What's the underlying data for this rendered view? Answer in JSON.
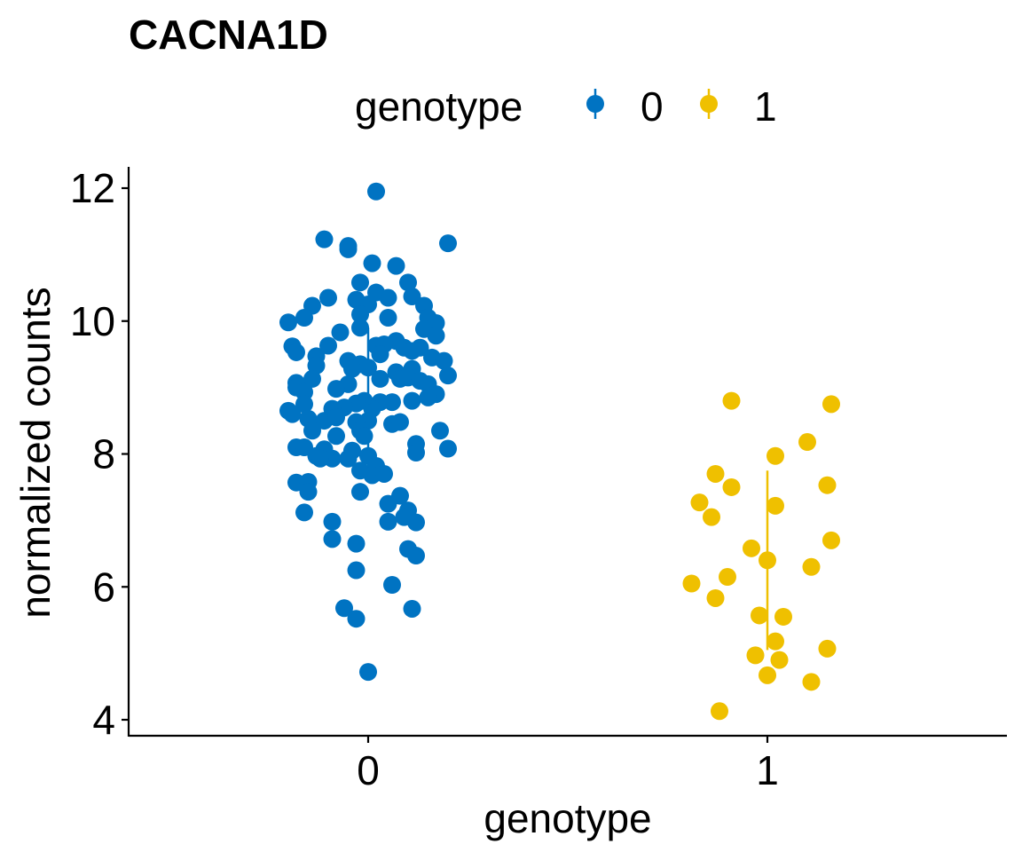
{
  "chart_data": {
    "type": "scatter",
    "title": "CACNA1D",
    "xlabel": "genotype",
    "ylabel": "normalized counts",
    "categories": [
      "0",
      "1"
    ],
    "ylim": [
      3.8,
      12.3
    ],
    "yticks": [
      4,
      6,
      8,
      10,
      12
    ],
    "grid": false,
    "legend": {
      "title": "genotype",
      "position": "top",
      "labels": [
        "0",
        "1"
      ]
    },
    "colors": {
      "0": "#0073C2",
      "1": "#EFC000"
    },
    "series": [
      {
        "name": "0",
        "summary": {
          "median": 8.8,
          "low": 7.8,
          "high": 9.9
        },
        "points": [
          {
            "x": 0.02,
            "y": 11.95
          },
          {
            "x": -0.11,
            "y": 11.23
          },
          {
            "x": -0.05,
            "y": 11.13
          },
          {
            "x": 0.2,
            "y": 11.17
          },
          {
            "x": -0.05,
            "y": 11.08
          },
          {
            "x": 0.01,
            "y": 10.87
          },
          {
            "x": 0.07,
            "y": 10.83
          },
          {
            "x": -0.02,
            "y": 10.58
          },
          {
            "x": 0.1,
            "y": 10.58
          },
          {
            "x": 0.02,
            "y": 10.43
          },
          {
            "x": -0.1,
            "y": 10.35
          },
          {
            "x": 0.11,
            "y": 10.37
          },
          {
            "x": 0.05,
            "y": 10.35
          },
          {
            "x": -0.03,
            "y": 10.32
          },
          {
            "x": -0.14,
            "y": 10.23
          },
          {
            "x": 0.14,
            "y": 10.23
          },
          {
            "x": 0.0,
            "y": 10.25
          },
          {
            "x": -0.02,
            "y": 10.1
          },
          {
            "x": -0.16,
            "y": 10.05
          },
          {
            "x": 0.05,
            "y": 10.05
          },
          {
            "x": 0.15,
            "y": 10.05
          },
          {
            "x": -0.2,
            "y": 9.98
          },
          {
            "x": 0.17,
            "y": 9.97
          },
          {
            "x": -0.02,
            "y": 9.9
          },
          {
            "x": 0.14,
            "y": 9.88
          },
          {
            "x": -0.07,
            "y": 9.83
          },
          {
            "x": 0.17,
            "y": 9.78
          },
          {
            "x": 0.07,
            "y": 9.7
          },
          {
            "x": -0.19,
            "y": 9.62
          },
          {
            "x": -0.1,
            "y": 9.63
          },
          {
            "x": 0.02,
            "y": 9.63
          },
          {
            "x": 0.04,
            "y": 9.65
          },
          {
            "x": 0.09,
            "y": 9.6
          },
          {
            "x": 0.13,
            "y": 9.6
          },
          {
            "x": -0.18,
            "y": 9.53
          },
          {
            "x": 0.11,
            "y": 9.55
          },
          {
            "x": 0.03,
            "y": 9.5
          },
          {
            "x": 0.16,
            "y": 9.45
          },
          {
            "x": -0.13,
            "y": 9.47
          },
          {
            "x": 0.19,
            "y": 9.4
          },
          {
            "x": -0.05,
            "y": 9.4
          },
          {
            "x": -0.13,
            "y": 9.33
          },
          {
            "x": -0.02,
            "y": 9.35
          },
          {
            "x": 0.0,
            "y": 9.3
          },
          {
            "x": -0.04,
            "y": 9.28
          },
          {
            "x": 0.11,
            "y": 9.28
          },
          {
            "x": 0.07,
            "y": 9.23
          },
          {
            "x": 0.2,
            "y": 9.18
          },
          {
            "x": 0.03,
            "y": 9.13
          },
          {
            "x": -0.14,
            "y": 9.13
          },
          {
            "x": 0.08,
            "y": 9.13
          },
          {
            "x": 0.1,
            "y": 9.15
          },
          {
            "x": -0.18,
            "y": 9.07
          },
          {
            "x": -0.05,
            "y": 9.05
          },
          {
            "x": 0.13,
            "y": 9.1
          },
          {
            "x": -0.18,
            "y": 9.0
          },
          {
            "x": 0.15,
            "y": 9.05
          },
          {
            "x": -0.08,
            "y": 8.98
          },
          {
            "x": -0.16,
            "y": 8.93
          },
          {
            "x": 0.17,
            "y": 8.9
          },
          {
            "x": 0.15,
            "y": 8.85
          },
          {
            "x": -0.01,
            "y": 8.8
          },
          {
            "x": 0.11,
            "y": 8.8
          },
          {
            "x": 0.06,
            "y": 8.78
          },
          {
            "x": -0.03,
            "y": 8.76
          },
          {
            "x": 0.03,
            "y": 8.78
          },
          {
            "x": -0.16,
            "y": 8.75
          },
          {
            "x": -0.06,
            "y": 8.7
          },
          {
            "x": -0.09,
            "y": 8.68
          },
          {
            "x": 0.01,
            "y": 8.68
          },
          {
            "x": -0.2,
            "y": 8.65
          },
          {
            "x": -0.19,
            "y": 8.6
          },
          {
            "x": -0.15,
            "y": 8.53
          },
          {
            "x": -0.11,
            "y": 8.5
          },
          {
            "x": -0.08,
            "y": 8.55
          },
          {
            "x": 0.0,
            "y": 8.5
          },
          {
            "x": -0.03,
            "y": 8.48
          },
          {
            "x": 0.06,
            "y": 8.45
          },
          {
            "x": 0.08,
            "y": 8.48
          },
          {
            "x": -0.02,
            "y": 8.35
          },
          {
            "x": -0.14,
            "y": 8.35
          },
          {
            "x": 0.18,
            "y": 8.35
          },
          {
            "x": -0.08,
            "y": 8.27
          },
          {
            "x": -0.01,
            "y": 8.27
          },
          {
            "x": 0.12,
            "y": 8.15
          },
          {
            "x": -0.18,
            "y": 8.1
          },
          {
            "x": -0.16,
            "y": 8.1
          },
          {
            "x": 0.2,
            "y": 8.08
          },
          {
            "x": -0.11,
            "y": 8.07
          },
          {
            "x": -0.04,
            "y": 8.05
          },
          {
            "x": 0.12,
            "y": 8.02
          },
          {
            "x": -0.13,
            "y": 7.97
          },
          {
            "x": -0.09,
            "y": 7.93
          },
          {
            "x": -0.12,
            "y": 7.93
          },
          {
            "x": -0.05,
            "y": 7.93
          },
          {
            "x": 0.0,
            "y": 7.97
          },
          {
            "x": 0.02,
            "y": 7.82
          },
          {
            "x": -0.02,
            "y": 7.75
          },
          {
            "x": 0.01,
            "y": 7.68
          },
          {
            "x": 0.04,
            "y": 7.7
          },
          {
            "x": -0.18,
            "y": 7.57
          },
          {
            "x": -0.15,
            "y": 7.58
          },
          {
            "x": -0.15,
            "y": 7.43
          },
          {
            "x": -0.02,
            "y": 7.43
          },
          {
            "x": 0.08,
            "y": 7.37
          },
          {
            "x": 0.05,
            "y": 7.25
          },
          {
            "x": 0.1,
            "y": 7.15
          },
          {
            "x": -0.16,
            "y": 7.12
          },
          {
            "x": 0.09,
            "y": 7.05
          },
          {
            "x": -0.09,
            "y": 6.98
          },
          {
            "x": 0.05,
            "y": 6.98
          },
          {
            "x": 0.12,
            "y": 6.97
          },
          {
            "x": -0.09,
            "y": 6.72
          },
          {
            "x": -0.03,
            "y": 6.65
          },
          {
            "x": 0.1,
            "y": 6.57
          },
          {
            "x": 0.12,
            "y": 6.47
          },
          {
            "x": -0.03,
            "y": 6.25
          },
          {
            "x": 0.06,
            "y": 6.03
          },
          {
            "x": -0.06,
            "y": 5.68
          },
          {
            "x": 0.11,
            "y": 5.67
          },
          {
            "x": -0.03,
            "y": 5.52
          },
          {
            "x": 0.0,
            "y": 4.72
          }
        ]
      },
      {
        "name": "1",
        "summary": {
          "median": 6.4,
          "low": 5.05,
          "high": 7.75
        },
        "points": [
          {
            "x": 0.91,
            "y": 8.8
          },
          {
            "x": 1.16,
            "y": 8.75
          },
          {
            "x": 1.1,
            "y": 8.18
          },
          {
            "x": 1.02,
            "y": 7.97
          },
          {
            "x": 0.87,
            "y": 7.7
          },
          {
            "x": 1.15,
            "y": 7.53
          },
          {
            "x": 0.91,
            "y": 7.5
          },
          {
            "x": 0.83,
            "y": 7.27
          },
          {
            "x": 1.02,
            "y": 7.22
          },
          {
            "x": 0.86,
            "y": 7.05
          },
          {
            "x": 1.16,
            "y": 6.7
          },
          {
            "x": 0.96,
            "y": 6.58
          },
          {
            "x": 1.0,
            "y": 6.4
          },
          {
            "x": 1.11,
            "y": 6.3
          },
          {
            "x": 0.9,
            "y": 6.15
          },
          {
            "x": 0.81,
            "y": 6.05
          },
          {
            "x": 0.87,
            "y": 5.83
          },
          {
            "x": 0.98,
            "y": 5.57
          },
          {
            "x": 1.04,
            "y": 5.55
          },
          {
            "x": 1.02,
            "y": 5.18
          },
          {
            "x": 1.15,
            "y": 5.07
          },
          {
            "x": 0.97,
            "y": 4.97
          },
          {
            "x": 1.03,
            "y": 4.9
          },
          {
            "x": 1.0,
            "y": 4.67
          },
          {
            "x": 1.11,
            "y": 4.57
          },
          {
            "x": 0.88,
            "y": 4.13
          }
        ]
      }
    ]
  }
}
